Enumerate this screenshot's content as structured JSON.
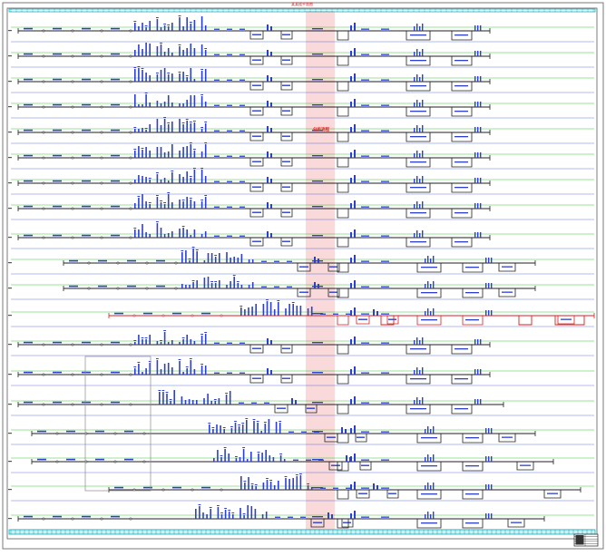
{
  "drawing": {
    "top_title": "某某楼平面图",
    "center_label": "分步流程",
    "colors": {
      "background": "#ffffff",
      "frame": "#6a6a6a",
      "frame_accent": "#00b8c8",
      "row_line": "#1f1f1f",
      "row_line_red": "#d42020",
      "guide_green": "#39c639",
      "guide_blue": "#3b5bd6",
      "symbol_blue": "#2c3fd0",
      "title_red": "#e02020",
      "band_pink": "#f6c9c9",
      "dim_teal": "#2fbfc9"
    }
  }
}
